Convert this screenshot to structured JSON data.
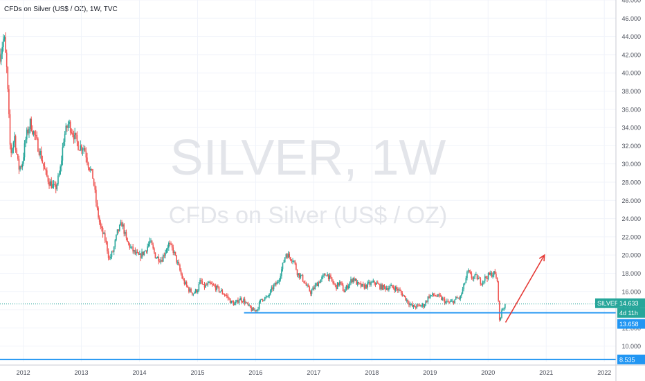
{
  "header": {
    "title": "CFDs on Silver (US$ / OZ), 1W, TVC"
  },
  "watermark": {
    "symbol": "SILVER, 1W",
    "description": "CFDs on Silver (US$ / OZ)"
  },
  "colors": {
    "up": "#26a69a",
    "down": "#ef5350",
    "support_line": "#2196f3",
    "arrow": "#e53935",
    "current_price_line": "#26a69a"
  },
  "badges": {
    "symbol_label": "SILVER",
    "last_price": "14.633",
    "countdown": "4d 11h",
    "support_price": "13.658",
    "bottom_price": "8.535"
  },
  "chart_data": {
    "type": "candlestick",
    "timeframe": "1W",
    "x_ticks": [
      "2012",
      "2013",
      "2014",
      "2015",
      "2016",
      "2017",
      "2018",
      "2019",
      "2020",
      "2021",
      "2022"
    ],
    "y_ticks": [
      "10.000",
      "12.000",
      "14.000",
      "16.000",
      "18.000",
      "20.000",
      "22.000",
      "24.000",
      "26.000",
      "28.000",
      "30.000",
      "32.000",
      "34.000",
      "36.000",
      "38.000",
      "40.000",
      "42.000",
      "44.000",
      "46.000",
      "48.000"
    ],
    "ylim": [
      8.3,
      48
    ],
    "xlim": [
      2011.6,
      2022.2
    ],
    "grid": true,
    "last_price": 14.633,
    "support_level": 13.658,
    "bottom_level": 8.535,
    "anchors": [
      [
        2011.6,
        42.0
      ],
      [
        2011.67,
        44.0
      ],
      [
        2011.72,
        40.0
      ],
      [
        2011.78,
        31.0
      ],
      [
        2011.85,
        33.0
      ],
      [
        2011.92,
        29.5
      ],
      [
        2011.98,
        30.0
      ],
      [
        2012.05,
        33.0
      ],
      [
        2012.12,
        34.5
      ],
      [
        2012.2,
        33.0
      ],
      [
        2012.3,
        31.0
      ],
      [
        2012.38,
        29.0
      ],
      [
        2012.45,
        28.0
      ],
      [
        2012.55,
        27.2
      ],
      [
        2012.63,
        29.0
      ],
      [
        2012.7,
        33.0
      ],
      [
        2012.78,
        34.5
      ],
      [
        2012.85,
        33.5
      ],
      [
        2012.95,
        32.0
      ],
      [
        2013.05,
        31.8
      ],
      [
        2013.12,
        30.0
      ],
      [
        2013.2,
        28.5
      ],
      [
        2013.27,
        25.0
      ],
      [
        2013.33,
        23.0
      ],
      [
        2013.42,
        21.5
      ],
      [
        2013.48,
        19.5
      ],
      [
        2013.55,
        20.5
      ],
      [
        2013.62,
        22.5
      ],
      [
        2013.7,
        23.5
      ],
      [
        2013.78,
        21.5
      ],
      [
        2013.85,
        20.8
      ],
      [
        2013.92,
        20.2
      ],
      [
        2014.0,
        19.8
      ],
      [
        2014.1,
        20.5
      ],
      [
        2014.18,
        21.5
      ],
      [
        2014.28,
        19.8
      ],
      [
        2014.38,
        19.5
      ],
      [
        2014.45,
        20.5
      ],
      [
        2014.5,
        21.2
      ],
      [
        2014.58,
        20.5
      ],
      [
        2014.67,
        18.8
      ],
      [
        2014.75,
        17.2
      ],
      [
        2014.85,
        16.2
      ],
      [
        2014.92,
        15.8
      ],
      [
        2015.0,
        16.2
      ],
      [
        2015.05,
        17.2
      ],
      [
        2015.1,
        16.5
      ],
      [
        2015.2,
        16.8
      ],
      [
        2015.3,
        16.5
      ],
      [
        2015.4,
        16.0
      ],
      [
        2015.5,
        15.5
      ],
      [
        2015.58,
        14.8
      ],
      [
        2015.65,
        14.6
      ],
      [
        2015.72,
        15.2
      ],
      [
        2015.8,
        15.0
      ],
      [
        2015.88,
        14.3
      ],
      [
        2015.95,
        13.9
      ],
      [
        2016.02,
        14.0
      ],
      [
        2016.1,
        15.2
      ],
      [
        2016.2,
        15.3
      ],
      [
        2016.3,
        16.5
      ],
      [
        2016.38,
        17.0
      ],
      [
        2016.45,
        18.5
      ],
      [
        2016.52,
        20.2
      ],
      [
        2016.58,
        19.8
      ],
      [
        2016.65,
        19.5
      ],
      [
        2016.72,
        18.0
      ],
      [
        2016.8,
        17.5
      ],
      [
        2016.88,
        16.5
      ],
      [
        2016.95,
        15.9
      ],
      [
        2017.05,
        16.8
      ],
      [
        2017.15,
        17.5
      ],
      [
        2017.22,
        18.0
      ],
      [
        2017.3,
        17.2
      ],
      [
        2017.38,
        16.5
      ],
      [
        2017.45,
        17.0
      ],
      [
        2017.52,
        16.0
      ],
      [
        2017.6,
        16.8
      ],
      [
        2017.68,
        17.5
      ],
      [
        2017.75,
        16.8
      ],
      [
        2017.85,
        16.5
      ],
      [
        2017.95,
        16.8
      ],
      [
        2018.05,
        17.0
      ],
      [
        2018.15,
        16.5
      ],
      [
        2018.25,
        16.4
      ],
      [
        2018.35,
        16.5
      ],
      [
        2018.45,
        16.2
      ],
      [
        2018.55,
        15.5
      ],
      [
        2018.63,
        14.8
      ],
      [
        2018.7,
        14.3
      ],
      [
        2018.8,
        14.4
      ],
      [
        2018.9,
        14.5
      ],
      [
        2018.98,
        15.5
      ],
      [
        2019.08,
        15.6
      ],
      [
        2019.18,
        15.3
      ],
      [
        2019.28,
        14.8
      ],
      [
        2019.38,
        14.8
      ],
      [
        2019.45,
        15.2
      ],
      [
        2019.52,
        15.3
      ],
      [
        2019.6,
        17.0
      ],
      [
        2019.65,
        18.2
      ],
      [
        2019.72,
        17.5
      ],
      [
        2019.8,
        17.6
      ],
      [
        2019.88,
        17.0
      ],
      [
        2019.95,
        17.5
      ],
      [
        2020.02,
        17.8
      ],
      [
        2020.1,
        18.0
      ],
      [
        2020.15,
        17.5
      ],
      [
        2020.18,
        15.0
      ],
      [
        2020.2,
        12.2
      ],
      [
        2020.23,
        14.0
      ],
      [
        2020.27,
        14.3
      ],
      [
        2020.3,
        14.63
      ]
    ]
  }
}
